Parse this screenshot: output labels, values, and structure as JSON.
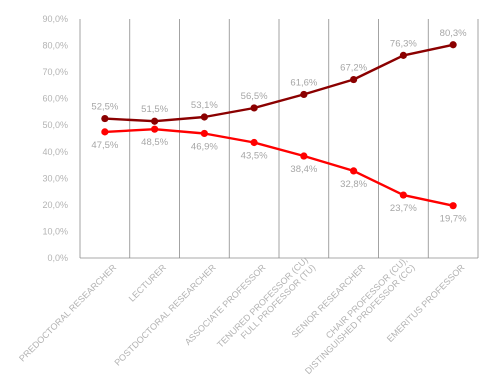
{
  "chart_data": {
    "type": "line",
    "categories": [
      "PREDOCTORAL RESEARCHER",
      "LECTURER",
      "POSTDOCTORAL RESEARCHER",
      "ASSOCIATE PROFESSOR",
      "TENURED PROFESSOR (CU)\nFULL PROFESSOR (TU)",
      "SENIOR RESEARCHER",
      "CHAIR PROFESSOR (CU),\nDISTINGUISHED PROFESSOR (CC)",
      "EMERITUS PROFESSOR"
    ],
    "series": [
      {
        "color": "#8b0000",
        "values": [
          52.5,
          51.5,
          53.1,
          56.5,
          61.6,
          67.2,
          76.3,
          80.3
        ],
        "labels": [
          "52,5%",
          "51,5%",
          "53,1%",
          "56,5%",
          "61,6%",
          "67,2%",
          "76,3%",
          "80,3%"
        ]
      },
      {
        "color": "#ff0000",
        "values": [
          47.5,
          48.5,
          46.9,
          43.5,
          38.4,
          32.8,
          23.7,
          19.7
        ],
        "labels": [
          "47,5%",
          "48,5%",
          "46,9%",
          "43,5%",
          "38,4%",
          "32,8%",
          "23,7%",
          "19,7%"
        ]
      }
    ],
    "ylim": [
      0,
      90
    ],
    "yticks": [
      0,
      10,
      20,
      30,
      40,
      50,
      60,
      70,
      80,
      90
    ],
    "ytick_labels": [
      "0,0%",
      "10,0%",
      "20,0%",
      "30,0%",
      "40,0%",
      "50,0%",
      "60,0%",
      "70,0%",
      "80,0%",
      "90,0%"
    ],
    "grid": "vertical category dividers",
    "legend": "none"
  }
}
